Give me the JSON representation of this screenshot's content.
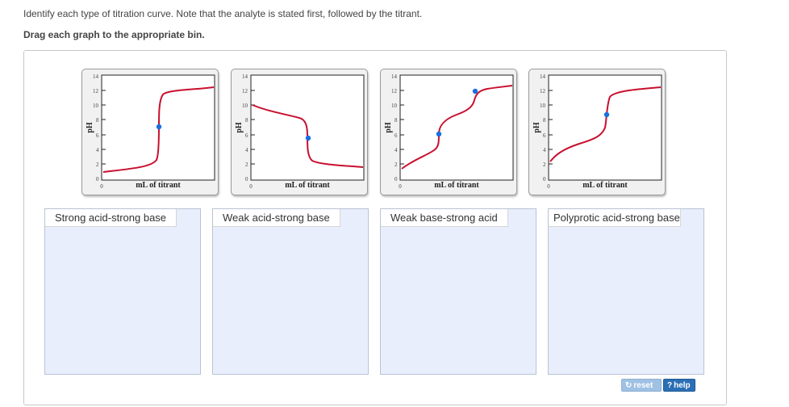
{
  "instructions": {
    "line1": "Identify each type of titration curve. Note that the analyte is stated first, followed by the titrant.",
    "line2": "Drag each graph to the appropriate bin."
  },
  "cards": [
    {
      "xlabel": "mL of titrant",
      "ylabel": "pH",
      "yticks": [
        "14",
        "12",
        "10",
        "8",
        "6",
        "4",
        "2",
        "0"
      ],
      "xzero": "0",
      "curve": "strong-acid-strong-base"
    },
    {
      "xlabel": "mL of titrant",
      "ylabel": "pH",
      "yticks": [
        "14",
        "12",
        "10",
        "8",
        "6",
        "4",
        "2",
        "0"
      ],
      "xzero": "0",
      "curve": "weak-base-strong-acid"
    },
    {
      "xlabel": "mL of titrant",
      "ylabel": "pH",
      "yticks": [
        "14",
        "12",
        "10",
        "8",
        "6",
        "4",
        "2",
        "0"
      ],
      "xzero": "0",
      "curve": "polyprotic-acid-strong-base"
    },
    {
      "xlabel": "mL of titrant",
      "ylabel": "pH",
      "yticks": [
        "14",
        "12",
        "10",
        "8",
        "6",
        "4",
        "2",
        "0"
      ],
      "xzero": "0",
      "curve": "weak-acid-strong-base"
    }
  ],
  "bins": [
    {
      "label": "Strong acid-strong base"
    },
    {
      "label": "Weak acid-strong base"
    },
    {
      "label": "Weak base-strong acid"
    },
    {
      "label": "Polyprotic acid-strong base"
    }
  ],
  "buttons": {
    "reset": "reset",
    "help": "help",
    "reset_icon": "refresh-icon",
    "help_icon": "question-icon"
  },
  "colors": {
    "curve": "#c8102e",
    "point": "#1a6fe0",
    "bin_bg": "#e8eefb",
    "help_bg": "#2b6fb5",
    "reset_bg": "#9fc1e4"
  }
}
